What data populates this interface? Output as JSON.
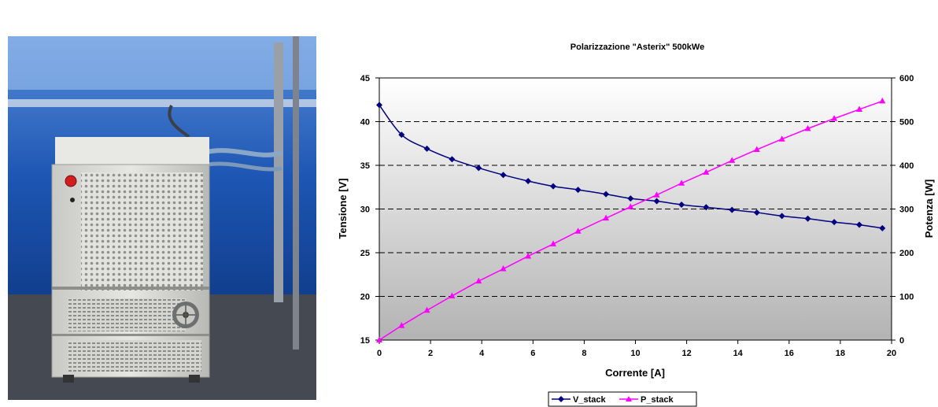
{
  "photo": {
    "colors": {
      "wall": "#1a56b0",
      "cabinet": "#dcdcd8",
      "floor": "#454a52"
    },
    "icons": [
      "red-button-icon",
      "fan-grille-icon"
    ]
  },
  "chart_data": {
    "type": "line",
    "title": "Polarizzazione \"Asterix\" 500kWe",
    "xlabel": "Corrente [A]",
    "ylabel": "Tensione [V]",
    "y2label": "Potenza [W]",
    "xlim": [
      0,
      20
    ],
    "ylim": [
      15,
      45
    ],
    "y2lim": [
      0,
      600
    ],
    "xticks": [
      "0",
      "2",
      "4",
      "6",
      "8",
      "10",
      "12",
      "14",
      "16",
      "18",
      "20"
    ],
    "yticks": [
      "15",
      "20",
      "25",
      "30",
      "35",
      "40",
      "45"
    ],
    "y2ticks": [
      "0",
      "100",
      "200",
      "300",
      "400",
      "500",
      "600"
    ],
    "grid": "horizontal dashed",
    "legend_position": "bottom",
    "background": "gradient white to grey",
    "series": [
      {
        "name": "V_stack",
        "axis": "left",
        "color": "#000080",
        "marker": "diamond",
        "x": [
          0,
          0.87,
          1.86,
          2.84,
          3.88,
          4.84,
          5.81,
          6.79,
          7.76,
          8.85,
          9.81,
          10.83,
          11.8,
          12.76,
          13.77,
          14.74,
          15.72,
          16.73,
          17.76,
          18.74,
          19.64
        ],
        "y": [
          41.9,
          38.5,
          36.9,
          35.7,
          34.7,
          33.9,
          33.2,
          32.6,
          32.2,
          31.7,
          31.2,
          30.9,
          30.5,
          30.2,
          29.9,
          29.6,
          29.2,
          28.9,
          28.5,
          28.2,
          27.8
        ]
      },
      {
        "name": "P_stack",
        "axis": "right",
        "color": "#ff00ff",
        "marker": "triangle",
        "x": [
          0,
          0.87,
          1.86,
          2.84,
          3.88,
          4.84,
          5.81,
          6.79,
          7.76,
          8.85,
          9.81,
          10.83,
          11.8,
          12.76,
          13.77,
          14.74,
          15.72,
          16.73,
          17.76,
          18.74,
          19.64
        ],
        "y": [
          0,
          33,
          68,
          101,
          135,
          163,
          192,
          220,
          249,
          279,
          305,
          332,
          359,
          384,
          411,
          436,
          460,
          484,
          507,
          528,
          547
        ]
      }
    ]
  }
}
